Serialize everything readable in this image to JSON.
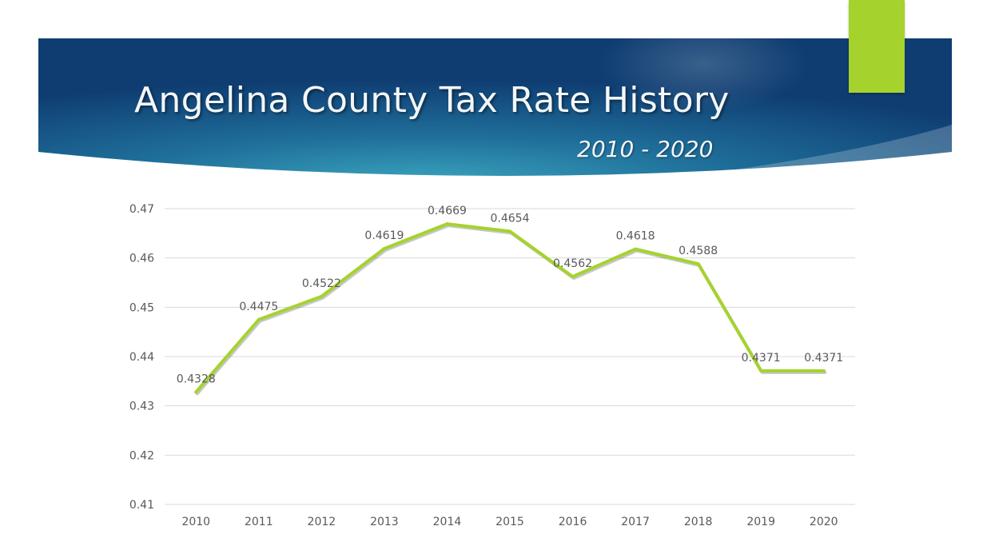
{
  "slide": {
    "title": "Angelina County Tax Rate History",
    "subtitle": "2010 - 2020",
    "colors": {
      "banner_dark": "#0f3d72",
      "banner_mid": "#2a8fae",
      "accent": "#a6d22e",
      "line": "#a6d22e",
      "gridline": "#d9d9d9",
      "label_text": "#595959"
    }
  },
  "chart_data": {
    "type": "line",
    "categories": [
      "2010",
      "2011",
      "2012",
      "2013",
      "2014",
      "2015",
      "2016",
      "2017",
      "2018",
      "2019",
      "2020"
    ],
    "series": [
      {
        "values": [
          0.4328,
          0.4475,
          0.4522,
          0.4619,
          0.4669,
          0.4654,
          0.4562,
          0.4618,
          0.4588,
          0.4371,
          0.4371
        ],
        "labels": [
          "0.4328",
          "0.4475",
          "0.4522",
          "0.4619",
          "0.4669",
          "0.4654",
          "0.4562",
          "0.4618",
          "0.4588",
          "0.4371",
          "0.4371"
        ]
      }
    ],
    "y_ticks": [
      "0.41",
      "0.42",
      "0.43",
      "0.44",
      "0.45",
      "0.46",
      "0.47"
    ],
    "ylim": [
      0.41,
      0.47
    ],
    "grid": true,
    "legend": "none"
  }
}
